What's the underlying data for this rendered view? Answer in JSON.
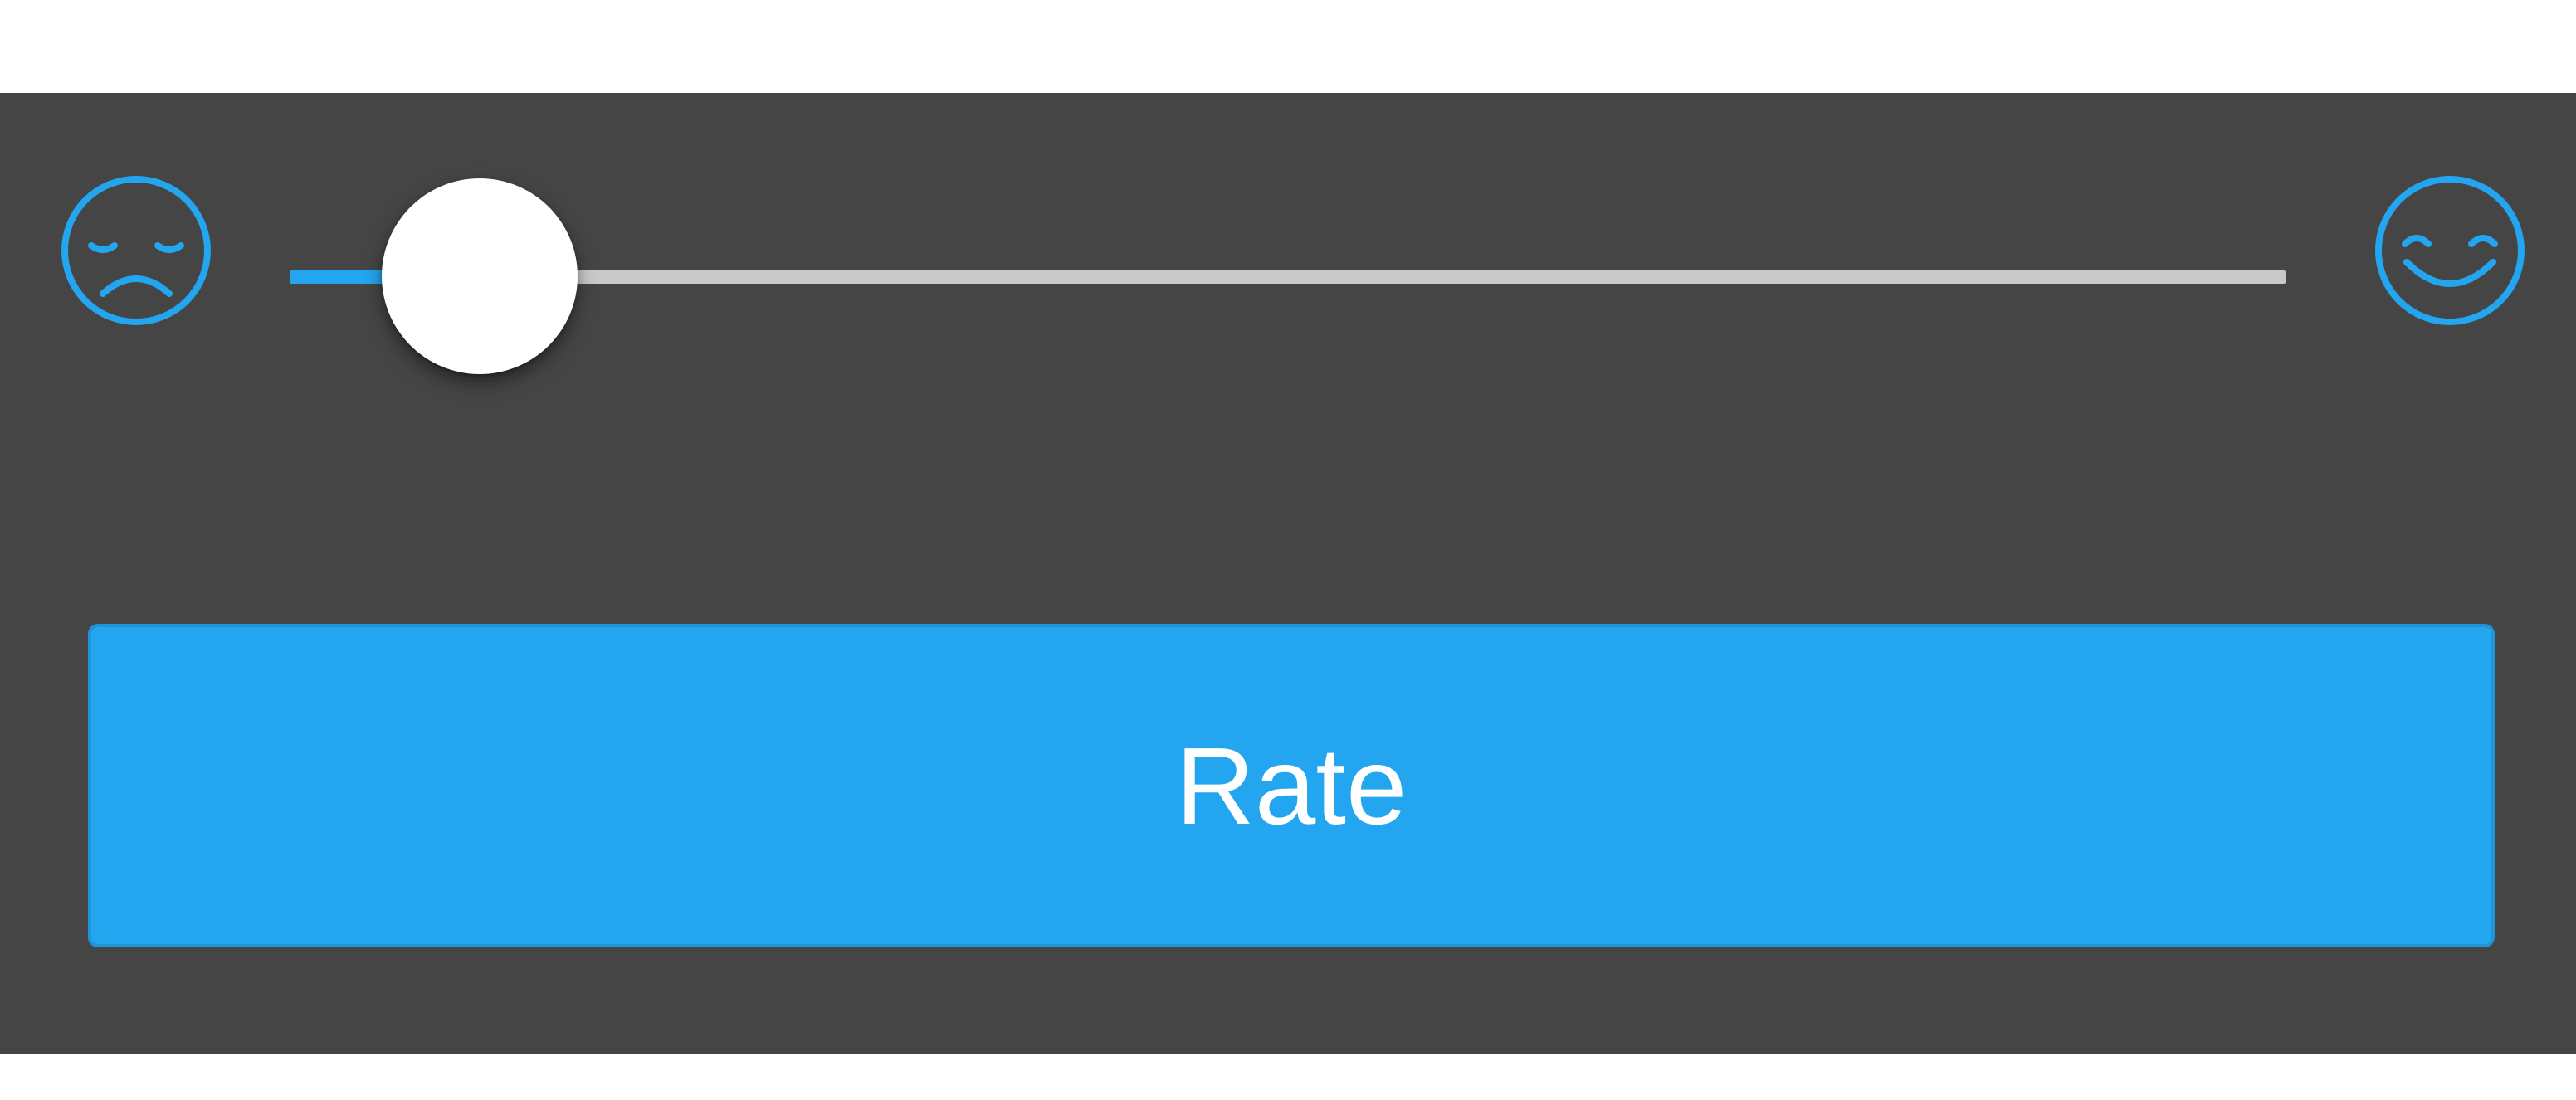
{
  "rating": {
    "slider": {
      "value": 0.095,
      "min_icon": "sad-face-icon",
      "max_icon": "happy-face-icon"
    },
    "button": {
      "label": "Rate"
    }
  },
  "colors": {
    "panel_background": "#454545",
    "accent": "#23a6ef",
    "track": "#c9c9c9",
    "thumb": "#ffffff",
    "button_text": "#ffffff"
  }
}
